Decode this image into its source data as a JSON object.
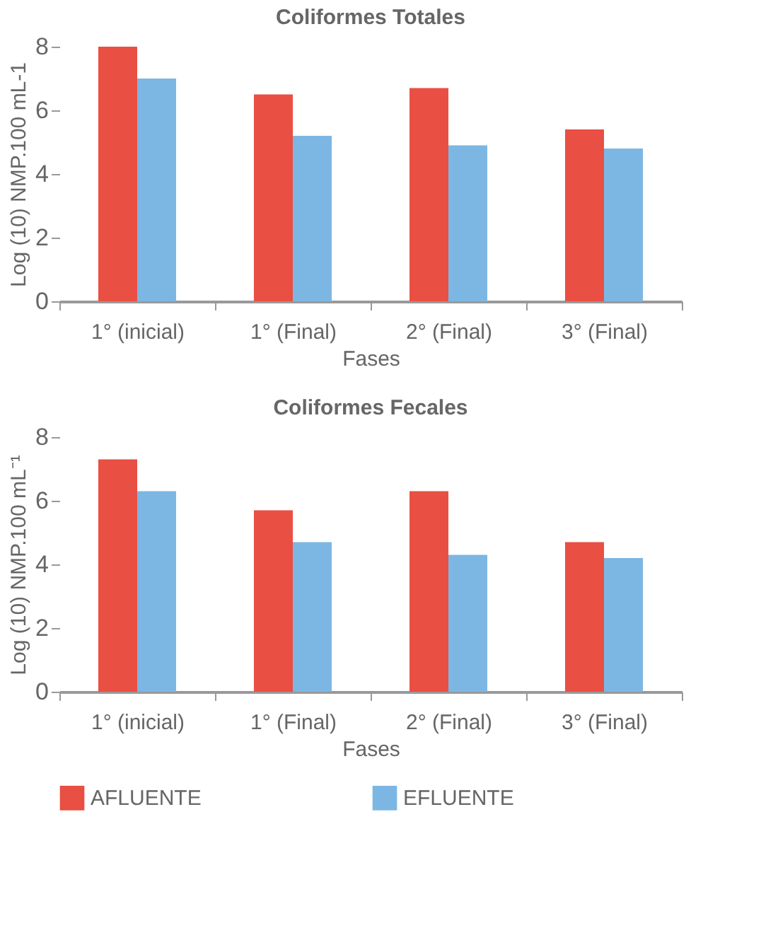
{
  "chart_data": [
    {
      "type": "bar",
      "title": "Coliformes Totales",
      "xlabel": "Fases",
      "ylabel": "Log (10) NMP.100 mL-1",
      "categories": [
        "1° (inicial)",
        "1° (Final)",
        "2° (Final)",
        "3° (Final)"
      ],
      "series": [
        {
          "name": "AFLUENTE",
          "color": "#e94f43",
          "values": [
            8.0,
            6.5,
            6.7,
            5.4
          ]
        },
        {
          "name": "EFLUENTE",
          "color": "#7cb7e3",
          "values": [
            7.0,
            5.2,
            4.9,
            4.8
          ]
        }
      ],
      "ylim": [
        0,
        8
      ],
      "yticks": [
        0,
        2,
        4,
        6,
        8
      ],
      "grid": false,
      "legend": "bottom"
    },
    {
      "type": "bar",
      "title": "Coliformes Fecales",
      "xlabel": "Fases",
      "ylabel": "Log (10) NMP.100 mL⁻¹",
      "categories": [
        "1° (inicial)",
        "1° (Final)",
        "2° (Final)",
        "3° (Final)"
      ],
      "series": [
        {
          "name": "AFLUENTE",
          "color": "#e94f43",
          "values": [
            7.3,
            5.7,
            6.3,
            4.7
          ]
        },
        {
          "name": "EFLUENTE",
          "color": "#7cb7e3",
          "values": [
            6.3,
            4.7,
            4.3,
            4.2
          ]
        }
      ],
      "ylim": [
        0,
        8
      ],
      "yticks": [
        0,
        2,
        4,
        6,
        8
      ],
      "grid": false,
      "legend": "bottom"
    }
  ]
}
